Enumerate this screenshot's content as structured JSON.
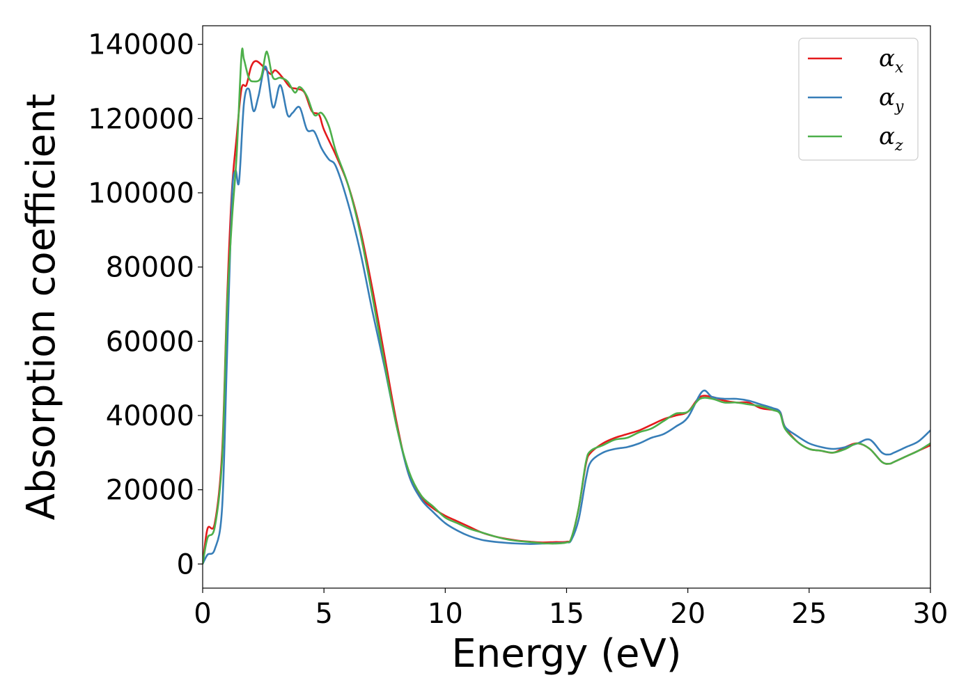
{
  "chart_data": {
    "type": "line",
    "xlabel": "Energy (eV)",
    "ylabel": "Absorption coefficient",
    "xlim": [
      0,
      30
    ],
    "ylim": [
      -6500,
      145000
    ],
    "xticks": [
      0,
      5,
      10,
      15,
      20,
      25,
      30
    ],
    "yticks": [
      0,
      20000,
      40000,
      60000,
      80000,
      100000,
      120000,
      140000
    ],
    "grid": false,
    "legend_position": "top-right",
    "series": [
      {
        "name": "α_x",
        "symbol": "α",
        "subscript": "x",
        "color": "#e41a1c",
        "x": [
          0,
          0.2,
          0.5,
          0.8,
          1.0,
          1.2,
          1.4,
          1.6,
          1.8,
          2.0,
          2.2,
          2.5,
          2.8,
          3.0,
          3.3,
          3.6,
          3.9,
          4.2,
          4.5,
          4.8,
          5.0,
          5.5,
          6.0,
          6.5,
          7.0,
          7.5,
          8.0,
          8.5,
          9.0,
          9.5,
          10.0,
          10.5,
          11.0,
          11.5,
          12.0,
          12.5,
          13.0,
          13.5,
          14.0,
          14.5,
          15.0,
          15.2,
          15.5,
          15.8,
          16.0,
          16.5,
          17.0,
          17.5,
          18.0,
          18.5,
          19.0,
          19.5,
          20.0,
          20.5,
          21.0,
          21.5,
          22.0,
          22.5,
          23.0,
          23.5,
          23.8,
          24.0,
          24.5,
          25.0,
          25.5,
          26.0,
          26.5,
          27.0,
          27.5,
          28.0,
          28.3,
          28.5,
          29.0,
          29.5,
          30.0
        ],
        "values": [
          0,
          9500,
          11000,
          30000,
          70000,
          100000,
          115000,
          128000,
          129000,
          134000,
          135500,
          134000,
          132000,
          133000,
          131000,
          128500,
          128000,
          127000,
          122000,
          121000,
          117000,
          110000,
          102000,
          90000,
          74000,
          56000,
          38000,
          24000,
          18000,
          15000,
          13000,
          11500,
          10000,
          8500,
          7500,
          6800,
          6300,
          6000,
          5800,
          5900,
          6000,
          7000,
          15000,
          27000,
          30000,
          32500,
          34000,
          35000,
          36000,
          37500,
          39000,
          40000,
          41000,
          45000,
          45000,
          44000,
          43500,
          43500,
          42000,
          41500,
          41000,
          37000,
          33000,
          31000,
          30500,
          30000,
          31500,
          32500,
          31000,
          27500,
          27000,
          27500,
          29000,
          30500,
          32000
        ]
      },
      {
        "name": "α_y",
        "symbol": "α",
        "subscript": "y",
        "color": "#377eb8",
        "x": [
          0,
          0.2,
          0.5,
          0.8,
          1.0,
          1.2,
          1.35,
          1.5,
          1.7,
          1.9,
          2.1,
          2.3,
          2.6,
          2.9,
          3.2,
          3.5,
          3.7,
          4.0,
          4.3,
          4.6,
          4.9,
          5.2,
          5.5,
          6.0,
          6.5,
          7.0,
          7.5,
          8.0,
          8.5,
          9.0,
          9.5,
          10.0,
          10.5,
          11.0,
          11.5,
          12.0,
          12.5,
          13.0,
          13.5,
          14.0,
          14.5,
          15.0,
          15.2,
          15.5,
          15.8,
          16.0,
          16.5,
          17.0,
          17.5,
          18.0,
          18.5,
          19.0,
          19.5,
          20.0,
          20.6,
          21.0,
          21.5,
          22.0,
          22.5,
          23.0,
          23.5,
          23.8,
          24.0,
          24.5,
          25.0,
          25.5,
          26.0,
          26.5,
          27.0,
          27.5,
          28.0,
          28.3,
          28.5,
          29.0,
          29.5,
          30.0
        ],
        "values": [
          0,
          2500,
          4000,
          15000,
          55000,
          98000,
          106000,
          103000,
          124000,
          128000,
          122000,
          126000,
          134000,
          123000,
          129000,
          121000,
          121500,
          123000,
          117000,
          116500,
          112000,
          109000,
          107000,
          97000,
          84000,
          68000,
          53000,
          37000,
          24000,
          17500,
          14000,
          11000,
          9000,
          7500,
          6500,
          6000,
          5700,
          5500,
          5400,
          5500,
          5600,
          5800,
          6500,
          12000,
          23000,
          27500,
          30000,
          31000,
          31500,
          32500,
          34000,
          35000,
          37000,
          39500,
          46500,
          45000,
          44500,
          44500,
          44000,
          43000,
          42000,
          41000,
          37000,
          34500,
          32500,
          31500,
          31000,
          31500,
          32500,
          33500,
          30000,
          29500,
          30000,
          31500,
          33000,
          36000
        ]
      },
      {
        "name": "α_z",
        "symbol": "α",
        "subscript": "z",
        "color": "#4daf4a",
        "x": [
          0,
          0.2,
          0.5,
          0.8,
          1.0,
          1.2,
          1.4,
          1.6,
          1.7,
          1.9,
          2.1,
          2.4,
          2.6,
          2.7,
          2.9,
          3.2,
          3.5,
          3.8,
          4.0,
          4.3,
          4.6,
          4.9,
          5.2,
          5.5,
          6.0,
          6.5,
          7.0,
          7.5,
          8.0,
          8.5,
          9.0,
          9.5,
          10.0,
          10.5,
          11.0,
          11.5,
          12.0,
          12.5,
          13.0,
          13.5,
          14.0,
          14.5,
          15.0,
          15.2,
          15.5,
          15.8,
          16.0,
          16.5,
          17.0,
          17.5,
          18.0,
          18.5,
          19.0,
          19.5,
          20.0,
          20.5,
          21.0,
          21.5,
          22.0,
          22.5,
          23.0,
          23.5,
          23.8,
          24.0,
          24.5,
          25.0,
          25.5,
          26.0,
          26.5,
          27.0,
          27.5,
          28.0,
          28.3,
          28.5,
          29.0,
          29.5,
          30.0
        ],
        "values": [
          0,
          7000,
          10000,
          28000,
          68000,
          92000,
          110000,
          137000,
          136000,
          131000,
          130000,
          131000,
          137500,
          137000,
          131000,
          131000,
          130000,
          127000,
          128500,
          126000,
          121000,
          121500,
          118000,
          111000,
          102000,
          89000,
          72000,
          54000,
          37000,
          25000,
          18500,
          15500,
          12500,
          11000,
          9500,
          8500,
          7500,
          6700,
          6200,
          5900,
          5600,
          5500,
          5800,
          7000,
          15000,
          27500,
          30500,
          32000,
          33500,
          34000,
          35500,
          36500,
          38500,
          40500,
          41000,
          44500,
          44500,
          43500,
          43500,
          43000,
          42500,
          41500,
          40500,
          36500,
          33000,
          31000,
          30500,
          30000,
          31000,
          32500,
          31000,
          27500,
          27000,
          27500,
          29000,
          30500,
          32500
        ]
      }
    ]
  }
}
